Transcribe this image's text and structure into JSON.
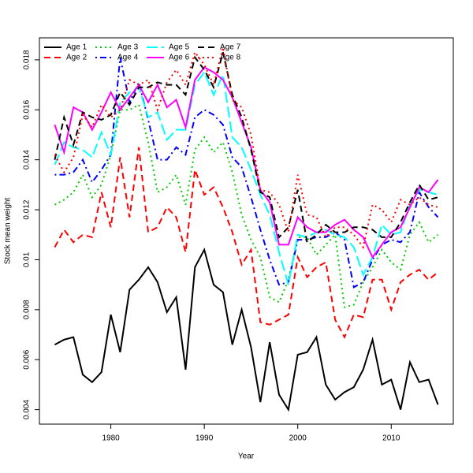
{
  "chart_data": {
    "type": "line",
    "xlabel": "Year",
    "ylabel": "Stock mean weight",
    "x": [
      1974,
      1975,
      1976,
      1977,
      1978,
      1979,
      1980,
      1981,
      1982,
      1983,
      1984,
      1985,
      1986,
      1987,
      1988,
      1989,
      1990,
      1991,
      1992,
      1993,
      1994,
      1995,
      1996,
      1997,
      1998,
      1999,
      2000,
      2001,
      2002,
      2003,
      2004,
      2005,
      2006,
      2007,
      2008,
      2009,
      2010,
      2011,
      2012,
      2013,
      2014,
      2015
    ],
    "xlim": [
      1972.36,
      2016.64
    ],
    "xticks": [
      1980,
      1990,
      2000,
      2010
    ],
    "ylim": [
      0.00342,
      0.01888
    ],
    "yticks": [
      0.004,
      0.006,
      0.008,
      0.01,
      0.012,
      0.014,
      0.016,
      0.018
    ],
    "legend": "top-left",
    "series": [
      {
        "name": "Age 1",
        "color": "#000000",
        "linetype": "solid",
        "values": [
          0.0066,
          0.0068,
          0.0069,
          0.0054,
          0.0051,
          0.0055,
          0.0078,
          0.0063,
          0.0088,
          0.0092,
          0.0097,
          0.0091,
          0.0079,
          0.0085,
          0.0056,
          0.0097,
          0.0104,
          0.009,
          0.0087,
          0.0066,
          0.008,
          0.0065,
          0.0043,
          0.0067,
          0.0046,
          0.004,
          0.0062,
          0.0063,
          0.0069,
          0.005,
          0.0044,
          0.0047,
          0.0049,
          0.0056,
          0.0068,
          0.005,
          0.0052,
          0.004,
          0.0059,
          0.0051,
          0.0052,
          0.0042
        ]
      },
      {
        "name": "Age 2",
        "color": "#ff0000",
        "linetype": "dashed",
        "values": [
          0.0105,
          0.0112,
          0.0107,
          0.011,
          0.0109,
          0.0127,
          0.0113,
          0.0141,
          0.0117,
          0.0145,
          0.0111,
          0.0113,
          0.0121,
          0.0117,
          0.0103,
          0.0136,
          0.0126,
          0.0129,
          0.0121,
          0.0111,
          0.0098,
          0.0104,
          0.0075,
          0.0074,
          0.0076,
          0.0078,
          0.0101,
          0.0093,
          0.0097,
          0.0099,
          0.0076,
          0.0069,
          0.0078,
          0.0077,
          0.0092,
          0.0092,
          0.008,
          0.0091,
          0.0094,
          0.0096,
          0.0092,
          0.0095
        ]
      },
      {
        "name": "Age 3",
        "color": "#00cd00",
        "linetype": "dotted",
        "values": [
          0.0122,
          0.0124,
          0.0127,
          0.0134,
          0.0125,
          0.013,
          0.0142,
          0.016,
          0.016,
          0.0162,
          0.0147,
          0.0127,
          0.0129,
          0.0134,
          0.0122,
          0.0144,
          0.0149,
          0.0143,
          0.0147,
          0.0135,
          0.0118,
          0.0108,
          0.0101,
          0.0085,
          0.0083,
          0.0092,
          0.0109,
          0.0109,
          0.0102,
          0.0106,
          0.011,
          0.0081,
          0.0082,
          0.0091,
          0.0097,
          0.0104,
          0.0099,
          0.0096,
          0.011,
          0.0115,
          0.0107,
          0.011
        ]
      },
      {
        "name": "Age 4",
        "color": "#0000ff",
        "linetype": "dotdash",
        "values": [
          0.0134,
          0.0134,
          0.0135,
          0.014,
          0.0131,
          0.0136,
          0.0142,
          0.0181,
          0.0163,
          0.0171,
          0.0156,
          0.014,
          0.014,
          0.0145,
          0.0142,
          0.0157,
          0.016,
          0.0158,
          0.0154,
          0.0141,
          0.0137,
          0.0125,
          0.0112,
          0.01,
          0.009,
          0.0091,
          0.0108,
          0.0108,
          0.0109,
          0.0109,
          0.0111,
          0.0108,
          0.0089,
          0.0091,
          0.01,
          0.0106,
          0.0108,
          0.0107,
          0.0111,
          0.0127,
          0.0121,
          0.0117
        ]
      },
      {
        "name": "Age 5",
        "color": "#00ffff",
        "linetype": "longdash",
        "values": [
          0.0138,
          0.0147,
          0.0145,
          0.0144,
          0.0141,
          0.0151,
          0.0142,
          0.0163,
          0.0167,
          0.0169,
          0.0157,
          0.0159,
          0.0148,
          0.0152,
          0.0152,
          0.017,
          0.0175,
          0.0166,
          0.0174,
          0.0149,
          0.0145,
          0.0136,
          0.0126,
          0.0118,
          0.0103,
          0.009,
          0.011,
          0.0109,
          0.0111,
          0.0112,
          0.011,
          0.0109,
          0.0105,
          0.0094,
          0.0101,
          0.0114,
          0.011,
          0.0111,
          0.0122,
          0.0128,
          0.0127,
          0.0126
        ]
      },
      {
        "name": "Age 6",
        "color": "#ff00ff",
        "linetype": "solid",
        "values": [
          0.0154,
          0.0143,
          0.0161,
          0.0159,
          0.0152,
          0.0159,
          0.0167,
          0.016,
          0.0165,
          0.017,
          0.0163,
          0.017,
          0.0161,
          0.0164,
          0.0153,
          0.0172,
          0.0177,
          0.0175,
          0.0172,
          0.0165,
          0.0155,
          0.0145,
          0.0128,
          0.0123,
          0.0106,
          0.0106,
          0.0117,
          0.0113,
          0.0111,
          0.0111,
          0.0114,
          0.0116,
          0.0112,
          0.0109,
          0.0101,
          0.0106,
          0.0111,
          0.0113,
          0.0121,
          0.0129,
          0.0127,
          0.0132
        ]
      },
      {
        "name": "Age 7",
        "color": "#000000",
        "linetype": "dashed",
        "values": [
          0.014,
          0.0157,
          0.0146,
          0.0159,
          0.0157,
          0.0156,
          0.0158,
          0.0167,
          0.0162,
          0.0169,
          0.0169,
          0.0171,
          0.017,
          0.017,
          0.0166,
          0.0181,
          0.0176,
          0.0169,
          0.0183,
          0.0166,
          0.0157,
          0.0144,
          0.0127,
          0.0125,
          0.0109,
          0.0113,
          0.0128,
          0.0107,
          0.011,
          0.0114,
          0.0111,
          0.0111,
          0.0113,
          0.0113,
          0.0112,
          0.0109,
          0.0109,
          0.0115,
          0.0123,
          0.013,
          0.0124,
          0.0125
        ]
      },
      {
        "name": "Age 8",
        "color": "#ff0000",
        "linetype": "dotted",
        "values": [
          0.0142,
          0.0135,
          0.0141,
          0.0158,
          0.0153,
          0.0162,
          0.0157,
          0.016,
          0.0172,
          0.017,
          0.0172,
          0.016,
          0.0171,
          0.0176,
          0.017,
          0.0183,
          0.0178,
          0.017,
          0.0185,
          0.0164,
          0.0161,
          0.015,
          0.0128,
          0.0127,
          0.0122,
          0.0111,
          0.0134,
          0.0118,
          0.0117,
          0.0109,
          0.0113,
          0.0113,
          0.011,
          0.0105,
          0.0122,
          0.012,
          0.0115,
          0.0124,
          0.0122,
          0.0125,
          0.0122,
          0.0121
        ]
      }
    ]
  }
}
